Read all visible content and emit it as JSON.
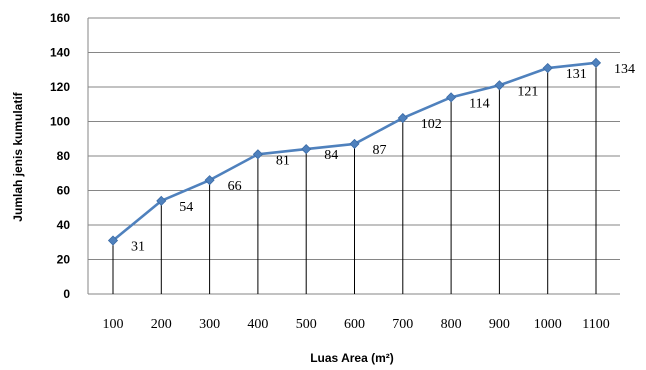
{
  "chart_data": {
    "type": "line",
    "title": "",
    "xlabel": "Luas Area (m²)",
    "ylabel": "Jumlah jenis kumulatif",
    "categories": [
      "100",
      "200",
      "300",
      "400",
      "500",
      "600",
      "700",
      "800",
      "900",
      "1000",
      "1100"
    ],
    "values": [
      31,
      54,
      66,
      81,
      84,
      87,
      102,
      114,
      121,
      131,
      134
    ],
    "data_labels": [
      "31",
      "54",
      "66",
      "81",
      "84",
      "87",
      "102",
      "114",
      "121",
      "131",
      "134"
    ],
    "ylim": [
      0,
      160
    ],
    "yticks": [
      "0",
      "20",
      "40",
      "60",
      "80",
      "100",
      "120",
      "140",
      "160"
    ],
    "grid": "horizontal",
    "legend": "none",
    "marker": "diamond",
    "colors": {
      "line": "#4f81bd",
      "marker": "#4f81bd",
      "grid": "#868686",
      "drop_line": "#000000"
    }
  }
}
